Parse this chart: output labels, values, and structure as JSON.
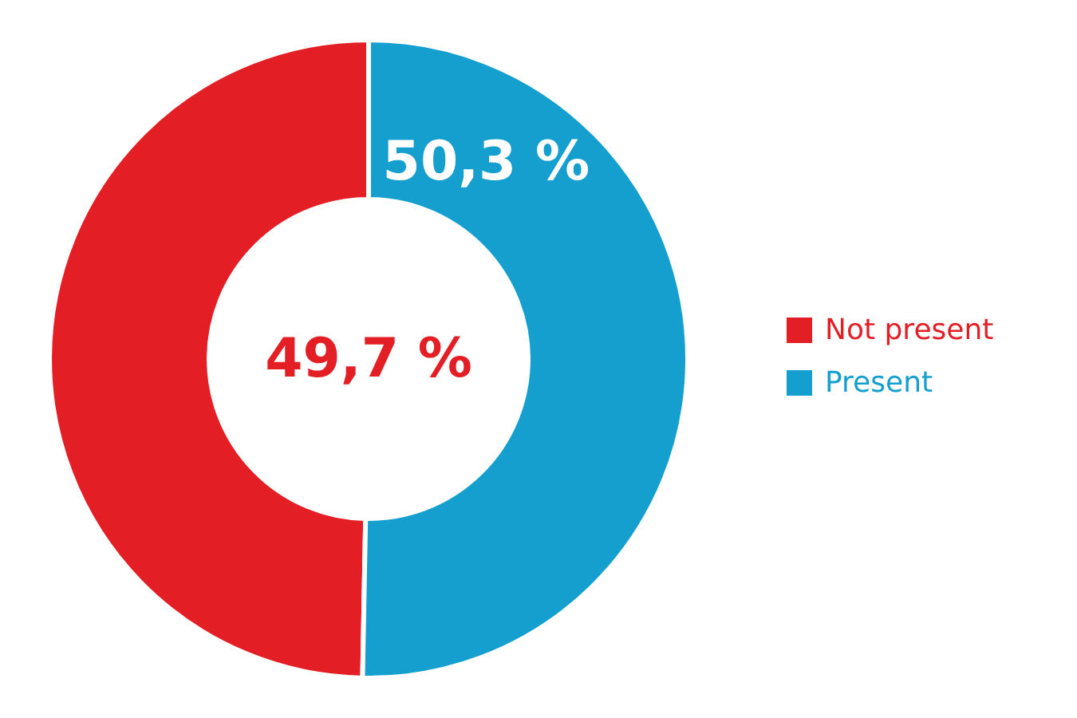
{
  "chart_data": {
    "type": "donut",
    "categories": [
      "Not present",
      "Present"
    ],
    "values": [
      49.7,
      50.3
    ],
    "colors": [
      "#e31e24",
      "#149fcf"
    ],
    "value_labels": [
      "49,7 %",
      "50,3 %"
    ],
    "legend": "right"
  }
}
